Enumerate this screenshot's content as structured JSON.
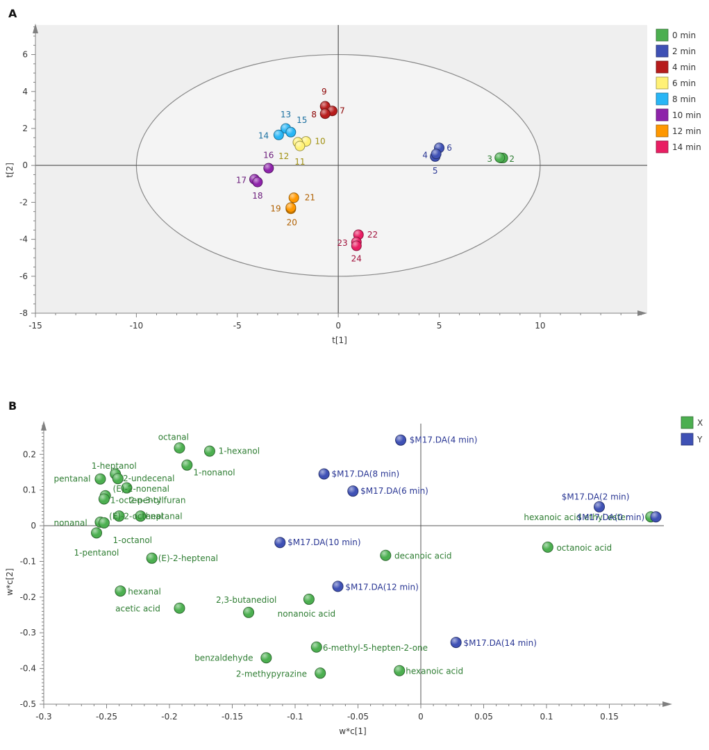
{
  "chart_data": [
    {
      "type": "scatter",
      "panel_label": "A",
      "title": "",
      "xlabel": "t[1]",
      "ylabel": "t[2]",
      "xlim": [
        -15,
        15.3
      ],
      "ylim": [
        -8,
        7.6
      ],
      "xticks": [
        -15,
        -10,
        -5,
        0,
        5,
        10
      ],
      "yticks": [
        -8,
        -6,
        -4,
        -2,
        0,
        2,
        4,
        6
      ],
      "ellipse": {
        "cx": 0,
        "cy": 0,
        "rx": 10,
        "ry": 6
      },
      "legend": {
        "placement": "top-right",
        "items": [
          {
            "label": "0 min",
            "color": "#4caf50"
          },
          {
            "label": "2 min",
            "color": "#3f51b5"
          },
          {
            "label": "4 min",
            "color": "#b71c1c"
          },
          {
            "label": "6 min",
            "color": "#fff176"
          },
          {
            "label": "8 min",
            "color": "#29b6f6"
          },
          {
            "label": "10 min",
            "color": "#8e24aa"
          },
          {
            "label": "12 min",
            "color": "#ff9800"
          },
          {
            "label": "14 min",
            "color": "#e91e63"
          }
        ]
      },
      "points": [
        {
          "x": 8.05,
          "y": 0.4,
          "group": 0
        },
        {
          "x": 8.15,
          "y": 0.4,
          "group": 0
        },
        {
          "x": 8.0,
          "y": 0.42,
          "group": 0
        },
        {
          "x": 5.0,
          "y": 0.95,
          "group": 1
        },
        {
          "x": 4.8,
          "y": 0.48,
          "group": 1
        },
        {
          "x": 4.85,
          "y": 0.62,
          "group": 1
        },
        {
          "x": -0.65,
          "y": 3.2,
          "group": 2
        },
        {
          "x": -0.3,
          "y": 2.95,
          "group": 2
        },
        {
          "x": -0.65,
          "y": 2.8,
          "group": 2
        },
        {
          "x": -1.6,
          "y": 1.3,
          "group": 3
        },
        {
          "x": -2.0,
          "y": 1.25,
          "group": 3
        },
        {
          "x": -1.9,
          "y": 1.05,
          "group": 3
        },
        {
          "x": -2.6,
          "y": 2.0,
          "group": 4
        },
        {
          "x": -2.95,
          "y": 1.65,
          "group": 4
        },
        {
          "x": -2.35,
          "y": 1.8,
          "group": 4
        },
        {
          "x": -3.45,
          "y": -0.15,
          "group": 5
        },
        {
          "x": -4.15,
          "y": -0.75,
          "group": 5
        },
        {
          "x": -4.0,
          "y": -0.9,
          "group": 5
        },
        {
          "x": -2.2,
          "y": -1.75,
          "group": 6
        },
        {
          "x": -2.35,
          "y": -2.35,
          "group": 6
        },
        {
          "x": -2.35,
          "y": -2.28,
          "group": 6
        },
        {
          "x": 1.0,
          "y": -3.75,
          "group": 7
        },
        {
          "x": 0.9,
          "y": -4.15,
          "group": 7
        },
        {
          "x": 0.9,
          "y": -4.35,
          "group": 7
        }
      ],
      "point_labels": [
        {
          "text": "2",
          "x": 8.6,
          "y": 0.35,
          "group": 0
        },
        {
          "text": "3",
          "x": 7.5,
          "y": 0.35,
          "group": 0
        },
        {
          "text": "6",
          "x": 5.5,
          "y": 0.95,
          "group": 1
        },
        {
          "text": "4",
          "x": 4.3,
          "y": 0.55,
          "group": 1
        },
        {
          "text": "5",
          "x": 4.8,
          "y": -0.3,
          "group": 1
        },
        {
          "text": "9",
          "x": -0.7,
          "y": 4.0,
          "group": 2
        },
        {
          "text": "7",
          "x": 0.2,
          "y": 2.95,
          "group": 2
        },
        {
          "text": "8",
          "x": -1.2,
          "y": 2.75,
          "group": 2
        },
        {
          "text": "10",
          "x": -0.9,
          "y": 1.3,
          "group": 3
        },
        {
          "text": "12",
          "x": -2.7,
          "y": 0.5,
          "group": 3
        },
        {
          "text": "11",
          "x": -1.9,
          "y": 0.2,
          "group": 3
        },
        {
          "text": "13",
          "x": -2.6,
          "y": 2.75,
          "group": 4
        },
        {
          "text": "15",
          "x": -1.8,
          "y": 2.45,
          "group": 4
        },
        {
          "text": "14",
          "x": -3.7,
          "y": 1.6,
          "group": 4
        },
        {
          "text": "16",
          "x": -3.45,
          "y": 0.55,
          "group": 5
        },
        {
          "text": "17",
          "x": -4.8,
          "y": -0.8,
          "group": 5
        },
        {
          "text": "18",
          "x": -4.0,
          "y": -1.65,
          "group": 5
        },
        {
          "text": "21",
          "x": -1.4,
          "y": -1.75,
          "group": 6
        },
        {
          "text": "19",
          "x": -3.1,
          "y": -2.35,
          "group": 6
        },
        {
          "text": "20",
          "x": -2.3,
          "y": -3.1,
          "group": 6
        },
        {
          "text": "22",
          "x": 1.7,
          "y": -3.75,
          "group": 7
        },
        {
          "text": "23",
          "x": 0.2,
          "y": -4.2,
          "group": 7
        },
        {
          "text": "24",
          "x": 0.9,
          "y": -5.05,
          "group": 7
        }
      ]
    },
    {
      "type": "scatter",
      "panel_label": "B",
      "title": "",
      "xlabel": "w*c[1]",
      "ylabel": "w*c[2]",
      "xlim": [
        -0.3,
        0.2
      ],
      "ylim": [
        -0.5,
        0.29
      ],
      "xticks": [
        -0.3,
        -0.25,
        -0.2,
        -0.15,
        -0.1,
        -0.05,
        0,
        0.05,
        0.1,
        0.15
      ],
      "xtick_labels": [
        "-0.3",
        "-0.25",
        "-0.2",
        "-0.15",
        "-0.1",
        "-0.05",
        "0",
        "0.05",
        "0.1",
        "0.15"
      ],
      "yticks": [
        -0.5,
        -0.4,
        -0.3,
        -0.2,
        -0.1,
        0,
        0.1,
        0.2
      ],
      "ytick_labels": [
        "-0.5",
        "-0.4",
        "-0.3",
        "-0.2",
        "-0.1",
        "0",
        "0.1",
        "0.2"
      ],
      "legend": {
        "placement": "top-right",
        "items": [
          {
            "label": "X",
            "color": "#4caf50"
          },
          {
            "label": "Y",
            "color": "#3f51b5"
          }
        ]
      },
      "x_variables": [
        {
          "name": "octanal",
          "x": -0.192,
          "y": 0.218
        },
        {
          "name": "1-hexanol",
          "x": -0.168,
          "y": 0.209
        },
        {
          "name": "1-nonanol",
          "x": -0.186,
          "y": 0.17
        },
        {
          "name": "1-heptanol",
          "x": -0.243,
          "y": 0.145
        },
        {
          "name": "pentanal",
          "x": -0.255,
          "y": 0.131
        },
        {
          "name": "2-undecenal",
          "x": -0.241,
          "y": 0.132
        },
        {
          "name": "(E)-2-nonenal",
          "x": -0.234,
          "y": 0.106
        },
        {
          "name": "1-octen-3-ol",
          "x": -0.251,
          "y": 0.084
        },
        {
          "name": "2-pentylfuran",
          "x": -0.252,
          "y": 0.075
        },
        {
          "name": "(E)-2-octenal",
          "x": -0.24,
          "y": 0.027
        },
        {
          "name": "heptanal",
          "x": -0.223,
          "y": 0.027
        },
        {
          "name": "nonanal",
          "x": -0.255,
          "y": 0.01
        },
        {
          "name": "1-octanol",
          "x": -0.252,
          "y": 0.008
        },
        {
          "name": "1-pentanol",
          "x": -0.258,
          "y": -0.02
        },
        {
          "name": "(E)-2-heptenal",
          "x": -0.214,
          "y": -0.091
        },
        {
          "name": "hexanal",
          "x": -0.239,
          "y": -0.183
        },
        {
          "name": "acetic acid",
          "x": -0.192,
          "y": -0.231
        },
        {
          "name": "2,3-butanediol",
          "x": -0.137,
          "y": -0.243
        },
        {
          "name": "nonanoic acid",
          "x": -0.089,
          "y": -0.206
        },
        {
          "name": "benzaldehyde",
          "x": -0.123,
          "y": -0.37
        },
        {
          "name": "2-methypyrazine",
          "x": -0.08,
          "y": -0.413
        },
        {
          "name": "6-methyl-5-hepten-2-one",
          "x": -0.083,
          "y": -0.34
        },
        {
          "name": "hexanoic acid",
          "x": -0.017,
          "y": -0.406
        },
        {
          "name": "decanoic acid",
          "x": -0.028,
          "y": -0.083
        },
        {
          "name": "octanoic acid",
          "x": 0.101,
          "y": -0.06
        },
        {
          "name": "hexanoic acid ethyl ester",
          "x": 0.183,
          "y": 0.025
        }
      ],
      "x_labels": [
        {
          "text": "octanal",
          "x": -0.209,
          "y": 0.248
        },
        {
          "text": "1-hexanol",
          "x": -0.161,
          "y": 0.209
        },
        {
          "text": "1-nonanol",
          "x": -0.181,
          "y": 0.149
        },
        {
          "text": "1-heptanol",
          "x": -0.262,
          "y": 0.167
        },
        {
          "text": "pentanal",
          "x": -0.292,
          "y": 0.131
        },
        {
          "text": "2-undecenal",
          "x": -0.237,
          "y": 0.132
        },
        {
          "text": "(E)-2-nonenal",
          "x": -0.245,
          "y": 0.103
        },
        {
          "text": "1-octen-3-ol",
          "x": -0.247,
          "y": 0.071
        },
        {
          "text": "2-pentylfuran",
          "x": -0.232,
          "y": 0.071
        },
        {
          "text": "(E)-2-octenal",
          "x": -0.248,
          "y": 0.026
        },
        {
          "text": "heptanal",
          "x": -0.219,
          "y": 0.026
        },
        {
          "text": "nonanal",
          "x": -0.292,
          "y": 0.008
        },
        {
          "text": "1-octanol",
          "x": -0.245,
          "y": -0.041
        },
        {
          "text": "1-pentanol",
          "x": -0.276,
          "y": -0.076
        },
        {
          "text": "(E)-2-heptenal",
          "x": -0.209,
          "y": -0.091
        },
        {
          "text": "hexanal",
          "x": -0.233,
          "y": -0.185
        },
        {
          "text": "acetic acid",
          "x": -0.243,
          "y": -0.232
        },
        {
          "text": "2,3-butanediol",
          "x": -0.163,
          "y": -0.208
        },
        {
          "text": "nonanoic acid",
          "x": -0.114,
          "y": -0.247
        },
        {
          "text": "benzaldehyde",
          "x": -0.18,
          "y": -0.371
        },
        {
          "text": "2-methypyrazine",
          "x": -0.147,
          "y": -0.415
        },
        {
          "text": "6-methyl-5-hepten-2-one",
          "x": -0.078,
          "y": -0.342
        },
        {
          "text": "hexanoic acid",
          "x": -0.012,
          "y": -0.408
        },
        {
          "text": "decanoic acid",
          "x": -0.021,
          "y": -0.085
        },
        {
          "text": "octanoic acid",
          "x": 0.108,
          "y": -0.062
        },
        {
          "text": "hexanoic acid ethyl ester",
          "x": 0.082,
          "y": 0.023
        }
      ],
      "y_variables": [
        {
          "name": "$M17.DA(4 min)",
          "x": -0.016,
          "y": 0.24
        },
        {
          "name": "$M17.DA(8 min)",
          "x": -0.077,
          "y": 0.145
        },
        {
          "name": "$M17.DA(6 min)",
          "x": -0.054,
          "y": 0.097
        },
        {
          "name": "$M17.DA(2 min)",
          "x": 0.142,
          "y": 0.053
        },
        {
          "name": "$M17.DA(0 min)",
          "x": 0.187,
          "y": 0.025
        },
        {
          "name": "$M17.DA(10 min)",
          "x": -0.112,
          "y": -0.047
        },
        {
          "name": "$M17.DA(12 min)",
          "x": -0.066,
          "y": -0.17
        },
        {
          "name": "$M17.DA(14 min)",
          "x": 0.028,
          "y": -0.327
        }
      ],
      "y_labels": [
        {
          "text": "$M17.DA(4 min)",
          "x": -0.009,
          "y": 0.24
        },
        {
          "text": "$M17.DA(8 min)",
          "x": -0.071,
          "y": 0.145
        },
        {
          "text": "$M17.DA(6 min)",
          "x": -0.048,
          "y": 0.097
        },
        {
          "text": "$M17.DA(2 min)",
          "x": 0.112,
          "y": 0.081
        },
        {
          "text": "$M17.DA(0 min)",
          "x": 0.124,
          "y": 0.023
        },
        {
          "text": "$M17.DA(10 min)",
          "x": -0.106,
          "y": -0.047
        },
        {
          "text": "$M17.DA(12 min)",
          "x": -0.06,
          "y": -0.172
        },
        {
          "text": "$M17.DA(14 min)",
          "x": 0.034,
          "y": -0.329
        }
      ]
    }
  ]
}
